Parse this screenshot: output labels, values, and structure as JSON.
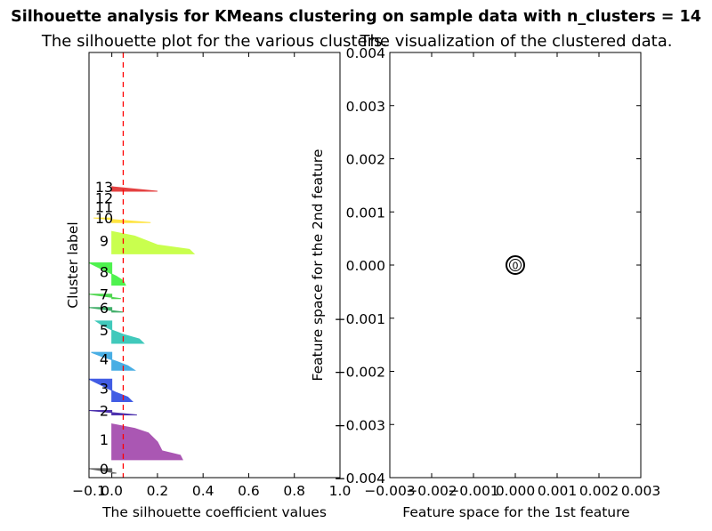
{
  "title": "Silhouette analysis for KMeans clustering on sample data with n_clusters = 14",
  "colors": {
    "average_line": "#ff0000",
    "frame": "#000000",
    "center_marker": "#000000"
  },
  "chart_data": [
    {
      "type": "area",
      "title": "The silhouette plot for the various clusters.",
      "xlabel": "The silhouette coefficient values",
      "ylabel": "Cluster label",
      "xlim": [
        -0.1,
        1.0
      ],
      "ylim": [
        0,
        95
      ],
      "xticks": [
        "−0.1",
        "0.0",
        "0.2",
        "0.4",
        "0.6",
        "0.8",
        "1.0"
      ],
      "yticks": [],
      "grid": false,
      "average_silhouette": 0.05,
      "clusters": [
        {
          "label": "0",
          "color": "#4a4a4a",
          "values": [
            0.02,
            -0.1
          ]
        },
        {
          "label": "1",
          "color": "#9c3aa6",
          "values": [
            0.31,
            0.3,
            0.22,
            0.21,
            0.2,
            0.18,
            0.16,
            0.1,
            0.0
          ]
        },
        {
          "label": "2",
          "color": "#3010a0",
          "values": [
            0.11,
            -0.1
          ]
        },
        {
          "label": "3",
          "color": "#2040e0",
          "values": [
            0.09,
            0.07,
            0.02,
            -0.02,
            -0.06,
            -0.1
          ]
        },
        {
          "label": "4",
          "color": "#2aa0e0",
          "values": [
            0.1,
            0.07,
            0.02,
            -0.04,
            -0.09
          ]
        },
        {
          "label": "5",
          "color": "#20c0b0",
          "values": [
            0.14,
            0.12,
            0.05,
            0.0,
            -0.04,
            -0.07
          ]
        },
        {
          "label": "6",
          "color": "#20a050",
          "values": [
            0.05,
            -0.1
          ]
        },
        {
          "label": "7",
          "color": "#30d030",
          "values": [
            0.04,
            -0.1
          ]
        },
        {
          "label": "8",
          "color": "#30f030",
          "values": [
            0.06,
            0.05,
            0.02,
            -0.02,
            -0.06,
            -0.1
          ]
        },
        {
          "label": "9",
          "color": "#c0ff30",
          "values": [
            0.36,
            0.34,
            0.2,
            0.15,
            0.1,
            0.0
          ]
        },
        {
          "label": "10",
          "color": "#ffe020",
          "values": [
            0.17,
            -0.08
          ]
        },
        {
          "label": "11",
          "color": "#ffd000",
          "values": []
        },
        {
          "label": "12",
          "color": "#ff8000",
          "values": []
        },
        {
          "label": "13",
          "color": "#e02020",
          "values": [
            0.2,
            0.0
          ]
        }
      ]
    },
    {
      "type": "scatter",
      "title": "The visualization of the clustered data.",
      "xlabel": "Feature space for the 1st feature",
      "ylabel": "Feature space for the 2nd feature",
      "xlim": [
        -0.003,
        0.003
      ],
      "ylim": [
        -0.004,
        0.004
      ],
      "xticks": [
        "−0.003",
        "−0.002",
        "−0.001",
        "0.000",
        "0.001",
        "0.002",
        "0.003"
      ],
      "yticks": [
        "−0.004",
        "−0.003",
        "−0.002",
        "−0.001",
        "0.000",
        "0.001",
        "0.002",
        "0.003",
        "0.004"
      ],
      "grid": false,
      "points": [
        [
          0,
          0
        ]
      ],
      "centers": [
        {
          "label": "0",
          "x": 0,
          "y": 0
        }
      ]
    }
  ]
}
